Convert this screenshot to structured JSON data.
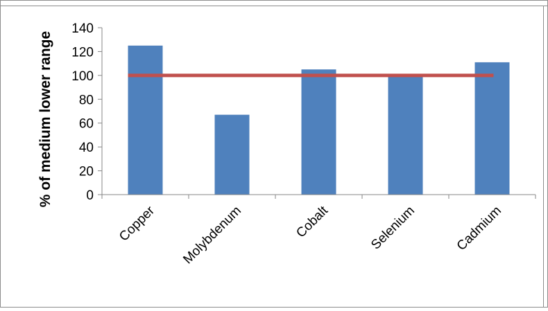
{
  "chart_data": {
    "type": "bar",
    "title": "",
    "xlabel": "",
    "ylabel": "% of medium lower range",
    "categories": [
      "Copper",
      "Molybdenum",
      "Cobalt",
      "Selenium",
      "Cadmium"
    ],
    "series": [
      {
        "values": [
          125,
          67,
          105,
          100,
          111
        ]
      }
    ],
    "reference_line": {
      "value": 100
    },
    "ylim": [
      0,
      140
    ],
    "yticks": [
      0,
      20,
      40,
      60,
      80,
      100,
      120,
      140
    ],
    "grid": false,
    "legend": "none"
  },
  "colors": {
    "bar": "#4f81bd",
    "reference_line": "#c0504d",
    "axis": "#868686",
    "frame": "#8c8c8c",
    "text": "#000000"
  }
}
